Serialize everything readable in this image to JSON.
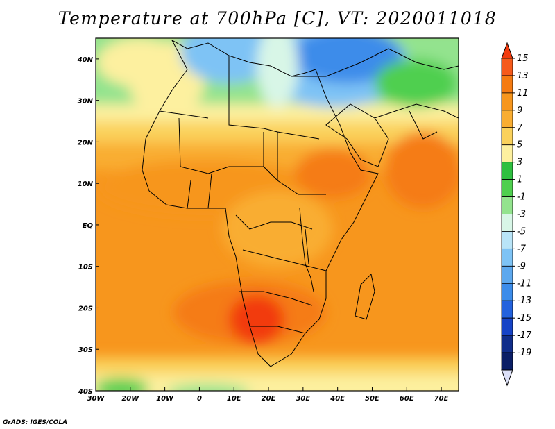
{
  "title": "Temperature at 700hPa [C], VT: 2020011018",
  "credit": "GrADS: IGES/COLA",
  "map": {
    "variable": "Temperature at 700hPa",
    "units": "C",
    "valid_time": "2020011018",
    "lon_range": [
      -30,
      75
    ],
    "lat_range": [
      -40,
      45
    ],
    "lon_ticks": [
      "30W",
      "20W",
      "10W",
      "0",
      "10E",
      "20E",
      "30E",
      "40E",
      "50E",
      "60E",
      "70E"
    ],
    "lat_ticks": [
      "40N",
      "30N",
      "20N",
      "10N",
      "EQ",
      "10S",
      "20S",
      "30S",
      "40S"
    ]
  },
  "colorbar": {
    "labels": [
      "15",
      "13",
      "11",
      "9",
      "7",
      "5",
      "3",
      "1",
      "-1",
      "-3",
      "-5",
      "-7",
      "-9",
      "-11",
      "-13",
      "-15",
      "-17",
      "-19"
    ],
    "colors": [
      "#f23b0e",
      "#f65a1b",
      "#f57b12",
      "#f7961d",
      "#f9ad32",
      "#fad15c",
      "#fdf09f",
      "#2fbf40",
      "#4fcf4f",
      "#93e38e",
      "#d8f6e7",
      "#b9e4f7",
      "#7ec3f5",
      "#5da8ee",
      "#3c8cea",
      "#2362dd",
      "#1643c6",
      "#102d8a",
      "#0a1e66",
      "#dce0f8"
    ]
  }
}
